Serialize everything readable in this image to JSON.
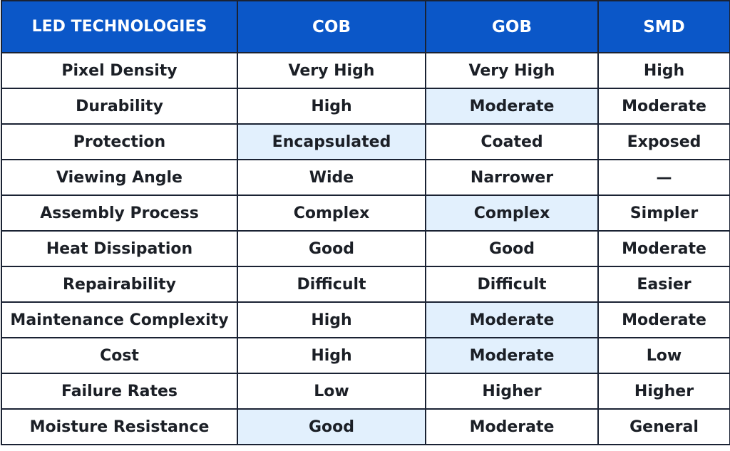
{
  "table": {
    "headers": [
      "LED TECHNOLOGIES",
      "COB",
      "GOB",
      "SMD"
    ],
    "rows": [
      {
        "feature": "Pixel Density",
        "cob": "Very High",
        "gob": "Very High",
        "smd": "High",
        "highlight": ""
      },
      {
        "feature": "Durability",
        "cob": "High",
        "gob": "Moderate",
        "smd": "Moderate",
        "highlight": "gob"
      },
      {
        "feature": "Protection",
        "cob": "Encapsulated",
        "gob": "Coated",
        "smd": "Exposed",
        "highlight": "cob"
      },
      {
        "feature": "Viewing Angle",
        "cob": "Wide",
        "gob": "Narrower",
        "smd": "—",
        "highlight": ""
      },
      {
        "feature": "Assembly Process",
        "cob": "Complex",
        "gob": "Complex",
        "smd": "Simpler",
        "highlight": "gob"
      },
      {
        "feature": "Heat Dissipation",
        "cob": "Good",
        "gob": "Good",
        "smd": "Moderate",
        "highlight": ""
      },
      {
        "feature": "Repairability",
        "cob": "Difficult",
        "gob": "Difficult",
        "smd": "Easier",
        "highlight": ""
      },
      {
        "feature": "Maintenance Complexity",
        "cob": "High",
        "gob": "Moderate",
        "smd": "Moderate",
        "highlight": "gob"
      },
      {
        "feature": "Cost",
        "cob": "High",
        "gob": "Moderate",
        "smd": "Low",
        "highlight": "gob"
      },
      {
        "feature": "Failure Rates",
        "cob": "Low",
        "gob": "Higher",
        "smd": "Higher",
        "highlight": ""
      },
      {
        "feature": "Moisture Resistance",
        "cob": "Good",
        "gob": "Moderate",
        "smd": "General",
        "highlight": "cob"
      }
    ]
  },
  "colors": {
    "header_bg": "#0b57c8",
    "header_text": "#ffffff",
    "highlight_bg": "#e2f0fd",
    "border": "#1a2233",
    "text": "#1b1f26"
  }
}
